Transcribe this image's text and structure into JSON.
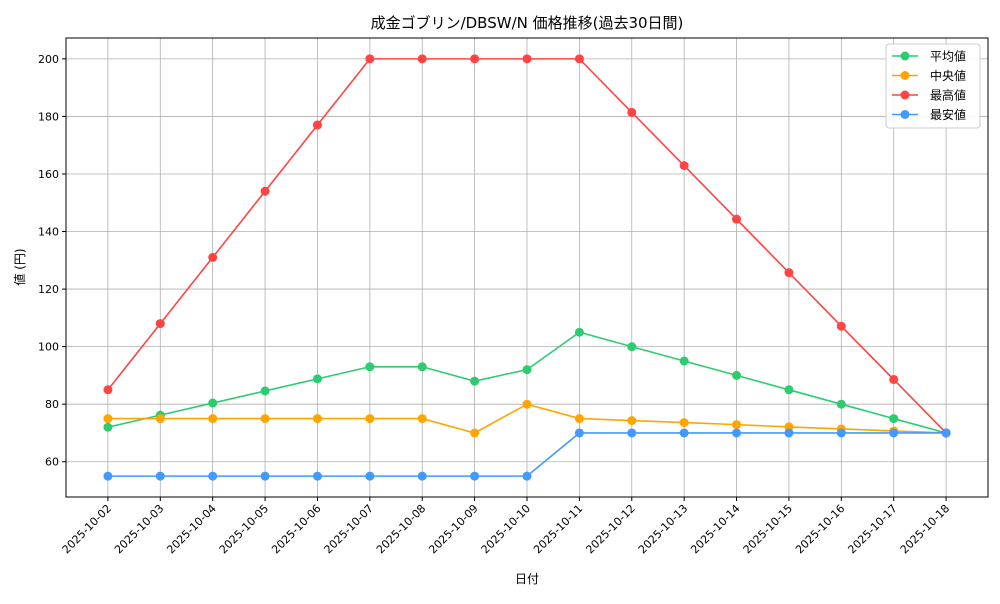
{
  "chart_data": {
    "type": "line",
    "title": "成金ゴブリン/DBSW/N 価格推移(過去30日間)",
    "xlabel": "日付",
    "ylabel": "値 (円)",
    "x": [
      "2025-10-02",
      "2025-10-03",
      "2025-10-04",
      "2025-10-05",
      "2025-10-06",
      "2025-10-07",
      "2025-10-08",
      "2025-10-09",
      "2025-10-10",
      "2025-10-11",
      "2025-10-12",
      "2025-10-13",
      "2025-10-14",
      "2025-10-15",
      "2025-10-16",
      "2025-10-17",
      "2025-10-18"
    ],
    "ylim": [
      47.75,
      207.25
    ],
    "yticks": [
      60,
      80,
      100,
      120,
      140,
      160,
      180,
      200
    ],
    "grid": true,
    "legend_position": "top-right",
    "series": [
      {
        "name": "平均値",
        "color": "#2ecc71",
        "values": [
          72,
          76.2,
          80.4,
          84.6,
          88.8,
          93,
          93,
          88,
          92,
          105,
          100,
          95,
          90,
          85,
          80,
          75,
          70
        ]
      },
      {
        "name": "中央値",
        "color": "#ffa500",
        "values": [
          75,
          75,
          75,
          75,
          75,
          75,
          75,
          70,
          80,
          75,
          74.3,
          73.6,
          72.9,
          72.1,
          71.4,
          70.7,
          70
        ]
      },
      {
        "name": "最高値",
        "color": "#ff4444",
        "values": [
          85,
          108,
          131,
          154,
          177,
          200,
          200,
          200,
          200,
          200,
          181.4,
          162.9,
          144.3,
          125.7,
          107.1,
          88.6,
          70
        ]
      },
      {
        "name": "最安値",
        "color": "#4499ff",
        "values": [
          55,
          55,
          55,
          55,
          55,
          55,
          55,
          55,
          55,
          70,
          70,
          70,
          70,
          70,
          70,
          70,
          70
        ]
      }
    ]
  }
}
